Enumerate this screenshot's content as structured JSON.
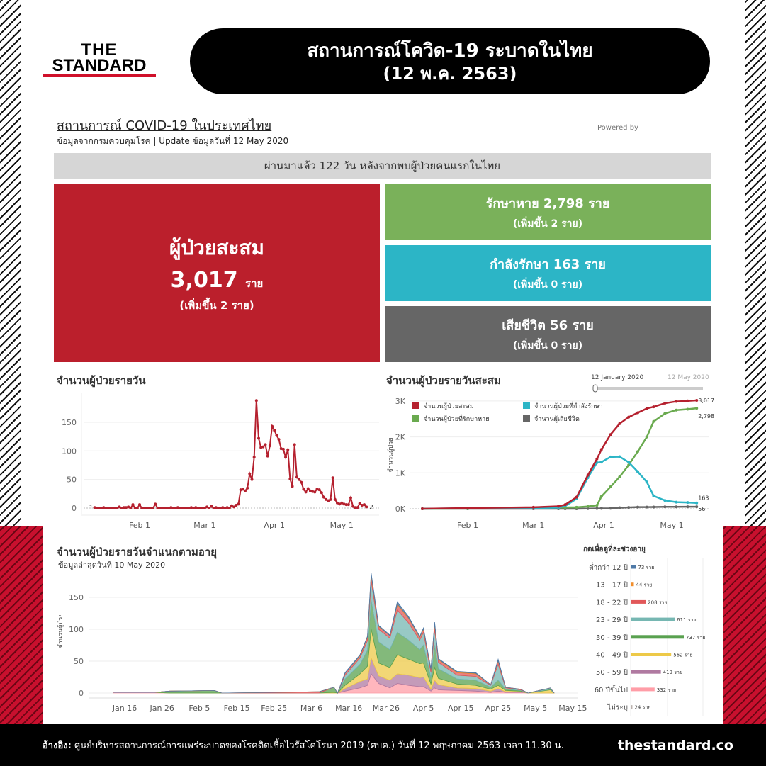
{
  "logo": {
    "line1": "THE",
    "line2": "STANDARD"
  },
  "header": {
    "title": "สถานการณ์โควิด-19 ระบาดในไทย",
    "date": "(12 พ.ค. 2563)"
  },
  "dashboard": {
    "title": "สถานการณ์ COVID-19 ในประเทศไทย",
    "subtitle": "ข้อมูลจากกรมควบคุมโรค | Update ข้อมูลวันที่ 12 May 2020",
    "powered_by": "Powered by",
    "days_banner": "ผ่านมาแล้ว 122 วัน หลังจากพบผู้ป่วยคนแรกในไทย",
    "total": {
      "label": "ผู้ป่วยสะสม",
      "value": "3,017",
      "unit": "ราย",
      "delta": "(เพิ่มขึ้น 2 ราย)",
      "color": "#bb1f2c"
    },
    "recovered": {
      "label": "รักษาหาย 2,798 ราย",
      "delta": "(เพิ่มขึ้น 2 ราย)",
      "color": "#7ab15a"
    },
    "active": {
      "label": "กำลังรักษา 163 ราย",
      "delta": "(เพิ่มขึ้น 0 ราย)",
      "color": "#2cb5c6"
    },
    "deaths": {
      "label": "เสียชีวิต 56 ราย",
      "delta": "(เพิ่มขึ้น 0 ราย)",
      "color": "#666666"
    }
  },
  "footer": {
    "source_label": "อ้างอิง:",
    "source": " ศูนย์บริหารสถานการณ์การแพร่ระบาดของโรคติดเชื้อไวรัสโคโรนา 2019 (ศบค.) วันที่ 12 พฤษภาคม 2563 เวลา 11.30 น.",
    "site": "thestandard.co"
  },
  "chart_data": [
    {
      "type": "line",
      "title": "จำนวนผู้ป่วยรายวัน",
      "ylim": [
        0,
        190
      ],
      "yticks": [
        0,
        50,
        100,
        150
      ],
      "xticks": [
        "Feb 1",
        "Mar 1",
        "Apr 1",
        "May 1"
      ],
      "xtick_dates": [
        "2020-02-01",
        "2020-03-01",
        "2020-04-01",
        "2020-05-01"
      ],
      "color": "#b5202e",
      "first_label": "1",
      "last_label": "2",
      "grid": true,
      "daily_cases": [
        {
          "month": "2020-01",
          "first_day": 12,
          "values": [
            1,
            0,
            0,
            0,
            1,
            0,
            0,
            0,
            0,
            0,
            0,
            2,
            0,
            1,
            1,
            2,
            0,
            6,
            0,
            0
          ]
        },
        {
          "month": "2020-02",
          "first_day": 1,
          "values": [
            6,
            0,
            0,
            0,
            0,
            0,
            0,
            7,
            0,
            0,
            0,
            0,
            0,
            0,
            1,
            0,
            0,
            1,
            0,
            0,
            0,
            0,
            0,
            1,
            0,
            1,
            0,
            0,
            0
          ]
        },
        {
          "month": "2020-03",
          "first_day": 1,
          "values": [
            0,
            2,
            0,
            3,
            0,
            1,
            0,
            0,
            1,
            0,
            1,
            0,
            4,
            2,
            5,
            7,
            32,
            33,
            30,
            35,
            60,
            50,
            89,
            188,
            122,
            106,
            107,
            111,
            91,
            109,
            143
          ]
        },
        {
          "month": "2020-04",
          "first_day": 1,
          "values": [
            136,
            127,
            120,
            104,
            103,
            89,
            102,
            51,
            38,
            111,
            54,
            50,
            45,
            33,
            28,
            34,
            30,
            29,
            28,
            33,
            32,
            27,
            19,
            15,
            13,
            15,
            53,
            15,
            9,
            7
          ]
        },
        {
          "month": "2020-05",
          "first_day": 1,
          "values": [
            9,
            7,
            6,
            6,
            18,
            3,
            1,
            1,
            8,
            5,
            6,
            2
          ]
        }
      ]
    },
    {
      "type": "line",
      "title": "จำนวนผู้ป่วยรายวันสะสม",
      "ylabel": "จำนวนผู้ป่วย",
      "ylim": [
        0,
        3000
      ],
      "yticks": [
        "0K",
        "1K",
        "2K",
        "3K"
      ],
      "xticks": [
        "Feb 1",
        "Mar 1",
        "Apr 1",
        "May 1"
      ],
      "xtick_dates": [
        "2020-02-01",
        "2020-03-01",
        "2020-04-01",
        "2020-05-01"
      ],
      "legend": "top-left",
      "grid": true,
      "slider": {
        "start": "12 January 2020",
        "end": "12 May 2020"
      },
      "series": [
        {
          "name": "จำนวนผู้ป่วยสะสม",
          "color": "#b5202e",
          "end_label": "3,017"
        },
        {
          "name": "จำนวนผู้ป่วยที่รักษาหาย",
          "color": "#6aaa4f",
          "end_label": "2,798"
        },
        {
          "name": "จำนวนผู้ป่วยที่กำลังรักษา",
          "color": "#2cb5c6",
          "end_label": "163"
        },
        {
          "name": "จำนวนผู้เสียชีวิต",
          "color": "#666666",
          "end_label": "56"
        }
      ],
      "points": [
        [
          "2020-01-12",
          1,
          0,
          1,
          0
        ],
        [
          "2020-02-01",
          19,
          5,
          14,
          0
        ],
        [
          "2020-03-01",
          42,
          28,
          14,
          1
        ],
        [
          "2020-03-12",
          70,
          35,
          34,
          1
        ],
        [
          "2020-03-15",
          114,
          37,
          76,
          1
        ],
        [
          "2020-03-20",
          322,
          42,
          279,
          1
        ],
        [
          "2020-03-25",
          934,
          64,
          866,
          4
        ],
        [
          "2020-03-29",
          1388,
          97,
          1284,
          7
        ],
        [
          "2020-03-31",
          1651,
          342,
          1300,
          10
        ],
        [
          "2020-04-04",
          2067,
          612,
          1443,
          12
        ],
        [
          "2020-04-08",
          2369,
          888,
          1450,
          30
        ],
        [
          "2020-04-12",
          2551,
          1218,
          1295,
          38
        ],
        [
          "2020-04-16",
          2672,
          1593,
          1033,
          46
        ],
        [
          "2020-04-20",
          2792,
          1999,
          746,
          47
        ],
        [
          "2020-04-23",
          2839,
          2430,
          359,
          50
        ],
        [
          "2020-04-28",
          2938,
          2652,
          232,
          54
        ],
        [
          "2020-05-03",
          2987,
          2747,
          186,
          54
        ],
        [
          "2020-05-08",
          3004,
          2772,
          176,
          56
        ],
        [
          "2020-05-12",
          3017,
          2798,
          163,
          56
        ]
      ]
    },
    {
      "type": "area",
      "stacked": true,
      "title": "จำนวนผู้ป่วยรายวันจำแนกตามอายุ",
      "subtitle": "ข้อมูลล่าสุดวันที่ 10 May 2020",
      "ylabel": "จำนวนผู้ป่วย",
      "ylim": [
        0,
        190
      ],
      "yticks": [
        0,
        50,
        100,
        150
      ],
      "xticks": [
        "Jan 16",
        "Jan 26",
        "Feb 5",
        "Feb 15",
        "Feb 25",
        "Mar 6",
        "Mar 16",
        "Mar 26",
        "Apr 5",
        "Apr 15",
        "Apr 25",
        "May 5",
        "May 15"
      ],
      "xtick_dates": [
        "2020-01-16",
        "2020-01-26",
        "2020-02-05",
        "2020-02-15",
        "2020-02-25",
        "2020-03-06",
        "2020-03-16",
        "2020-03-26",
        "2020-04-05",
        "2020-04-15",
        "2020-04-25",
        "2020-05-05",
        "2020-05-15"
      ],
      "series_order": [
        "60 ปีขึ้นไป",
        "50 - 59 ปี",
        "40 - 49 ปี",
        "30 - 39 ปี",
        "23 - 29 ปี",
        "18 - 22 ปี",
        "13 - 17 ปี",
        "ต่ำกว่า 12 ปี"
      ],
      "points": [
        [
          "2020-01-13",
          [
            1,
            0,
            0,
            0,
            0,
            0,
            0,
            0
          ]
        ],
        [
          "2020-01-24",
          [
            1,
            0,
            0,
            0,
            0,
            0,
            0,
            0
          ]
        ],
        [
          "2020-01-28",
          [
            0,
            0,
            0,
            3,
            0,
            0,
            0,
            0
          ]
        ],
        [
          "2020-02-09",
          [
            0,
            0,
            0,
            4,
            0,
            0,
            0,
            0
          ]
        ],
        [
          "2020-02-11",
          [
            0,
            0,
            0,
            0,
            0,
            0,
            0,
            0
          ]
        ],
        [
          "2020-03-08",
          [
            0,
            0,
            0,
            0,
            0,
            2,
            0,
            0
          ]
        ],
        [
          "2020-03-12",
          [
            0,
            0,
            1,
            8,
            0,
            0,
            0,
            0
          ]
        ],
        [
          "2020-03-13",
          [
            0,
            0,
            0,
            0,
            0,
            0,
            0,
            0
          ]
        ],
        [
          "2020-03-15",
          [
            3,
            4,
            5,
            10,
            6,
            3,
            0,
            1
          ]
        ],
        [
          "2020-03-19",
          [
            8,
            10,
            12,
            15,
            10,
            3,
            1,
            1
          ]
        ],
        [
          "2020-03-21",
          [
            12,
            10,
            20,
            25,
            15,
            5,
            1,
            1
          ]
        ],
        [
          "2020-03-22",
          [
            30,
            25,
            45,
            45,
            30,
            8,
            2,
            3
          ]
        ],
        [
          "2020-03-24",
          [
            15,
            12,
            20,
            33,
            20,
            4,
            1,
            1
          ]
        ],
        [
          "2020-03-27",
          [
            8,
            12,
            20,
            28,
            18,
            4,
            0,
            1
          ]
        ],
        [
          "2020-03-29",
          [
            15,
            15,
            30,
            35,
            35,
            8,
            2,
            3
          ]
        ],
        [
          "2020-04-01",
          [
            12,
            16,
            25,
            30,
            27,
            7,
            1,
            2
          ]
        ],
        [
          "2020-04-04",
          [
            10,
            14,
            22,
            22,
            15,
            4,
            1,
            1
          ]
        ],
        [
          "2020-04-05",
          [
            10,
            15,
            22,
            28,
            20,
            5,
            1,
            1
          ]
        ],
        [
          "2020-04-07",
          [
            3,
            3,
            8,
            10,
            8,
            4,
            1,
            1
          ]
        ],
        [
          "2020-04-08",
          [
            8,
            12,
            20,
            35,
            25,
            8,
            1,
            2
          ]
        ],
        [
          "2020-04-09",
          [
            5,
            8,
            10,
            15,
            10,
            4,
            1,
            1
          ]
        ],
        [
          "2020-04-14",
          [
            4,
            4,
            6,
            8,
            6,
            4,
            1,
            1
          ]
        ],
        [
          "2020-04-19",
          [
            3,
            4,
            5,
            8,
            6,
            4,
            1,
            1
          ]
        ],
        [
          "2020-04-23",
          [
            1,
            2,
            3,
            3,
            3,
            1,
            0,
            0
          ]
        ],
        [
          "2020-04-25",
          [
            3,
            4,
            5,
            8,
            25,
            5,
            1,
            2
          ]
        ],
        [
          "2020-04-27",
          [
            1,
            1,
            2,
            2,
            2,
            1,
            0,
            0
          ]
        ],
        [
          "2020-05-01",
          [
            1,
            1,
            1,
            1,
            1,
            1,
            0,
            0
          ]
        ],
        [
          "2020-05-03",
          [
            0,
            0,
            0,
            0,
            0,
            0,
            0,
            0
          ]
        ],
        [
          "2020-05-09",
          [
            0,
            0,
            5,
            1,
            2,
            0,
            0,
            0
          ]
        ],
        [
          "2020-05-10",
          [
            0,
            0,
            0,
            0,
            0,
            0,
            0,
            0
          ]
        ]
      ]
    },
    {
      "type": "bar",
      "orientation": "horizontal",
      "title": "กดเพื่อดูที่ละช่วงอายุ",
      "unit": "ราย",
      "categories": [
        "ต่ำกว่า 12 ปี",
        "13 - 17 ปี",
        "18 - 22 ปี",
        "23 - 29 ปี",
        "30 - 39 ปี",
        "40 - 49 ปี",
        "50 - 59 ปี",
        "60 ปีขึ้นไป",
        "ไม่ระบุ"
      ],
      "values": [
        73,
        44,
        208,
        611,
        737,
        562,
        419,
        332,
        24
      ],
      "labels": [
        "73 ราย",
        "44 ราย",
        "208 ราย",
        "611 ราย",
        "737 ราย",
        "562 ราย",
        "419 ราย",
        "332 ราย",
        "24 ราย"
      ],
      "colors": [
        "#4e79a7",
        "#f28e2b",
        "#e15759",
        "#76b7b2",
        "#59a14f",
        "#edc948",
        "#b07aa1",
        "#ff9da7",
        "#bab0ac"
      ]
    }
  ]
}
